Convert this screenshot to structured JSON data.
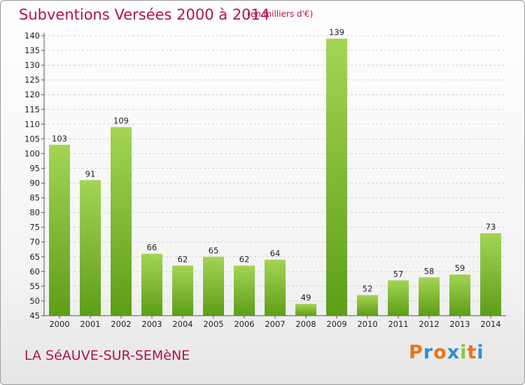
{
  "header": {
    "title": "Subventions Versées 2000 à 2014",
    "subtitle": "(en milliers d'€)"
  },
  "footer": {
    "commune": "LA SéAUVE-SUR-SEMèNE",
    "logo": "Proxiti",
    "logo_colors": [
      "#e8731a",
      "#2d8fd4",
      "#e8731a",
      "#2d8fd4",
      "#8cc63f",
      "#e8731a",
      "#2d8fd4"
    ]
  },
  "colors": {
    "title": "#b0124e",
    "bar_light": "#a4d455",
    "bar_dark": "#5d9e17",
    "grid": "#d0d0d0"
  },
  "chart_data": {
    "type": "bar",
    "title": "Subventions Versées 2000 à 2014",
    "subtitle": "(en milliers d'€)",
    "categories": [
      "2000",
      "2001",
      "2002",
      "2003",
      "2004",
      "2005",
      "2006",
      "2007",
      "2008",
      "2009",
      "2010",
      "2011",
      "2012",
      "2013",
      "2014"
    ],
    "values": [
      103,
      91,
      109,
      66,
      62,
      65,
      62,
      64,
      49,
      139,
      52,
      57,
      58,
      59,
      73
    ],
    "ylim": [
      45,
      140
    ],
    "yticks": [
      45,
      50,
      55,
      60,
      65,
      70,
      75,
      80,
      85,
      90,
      95,
      100,
      105,
      110,
      115,
      120,
      125,
      130,
      135,
      140
    ],
    "grid": true
  }
}
